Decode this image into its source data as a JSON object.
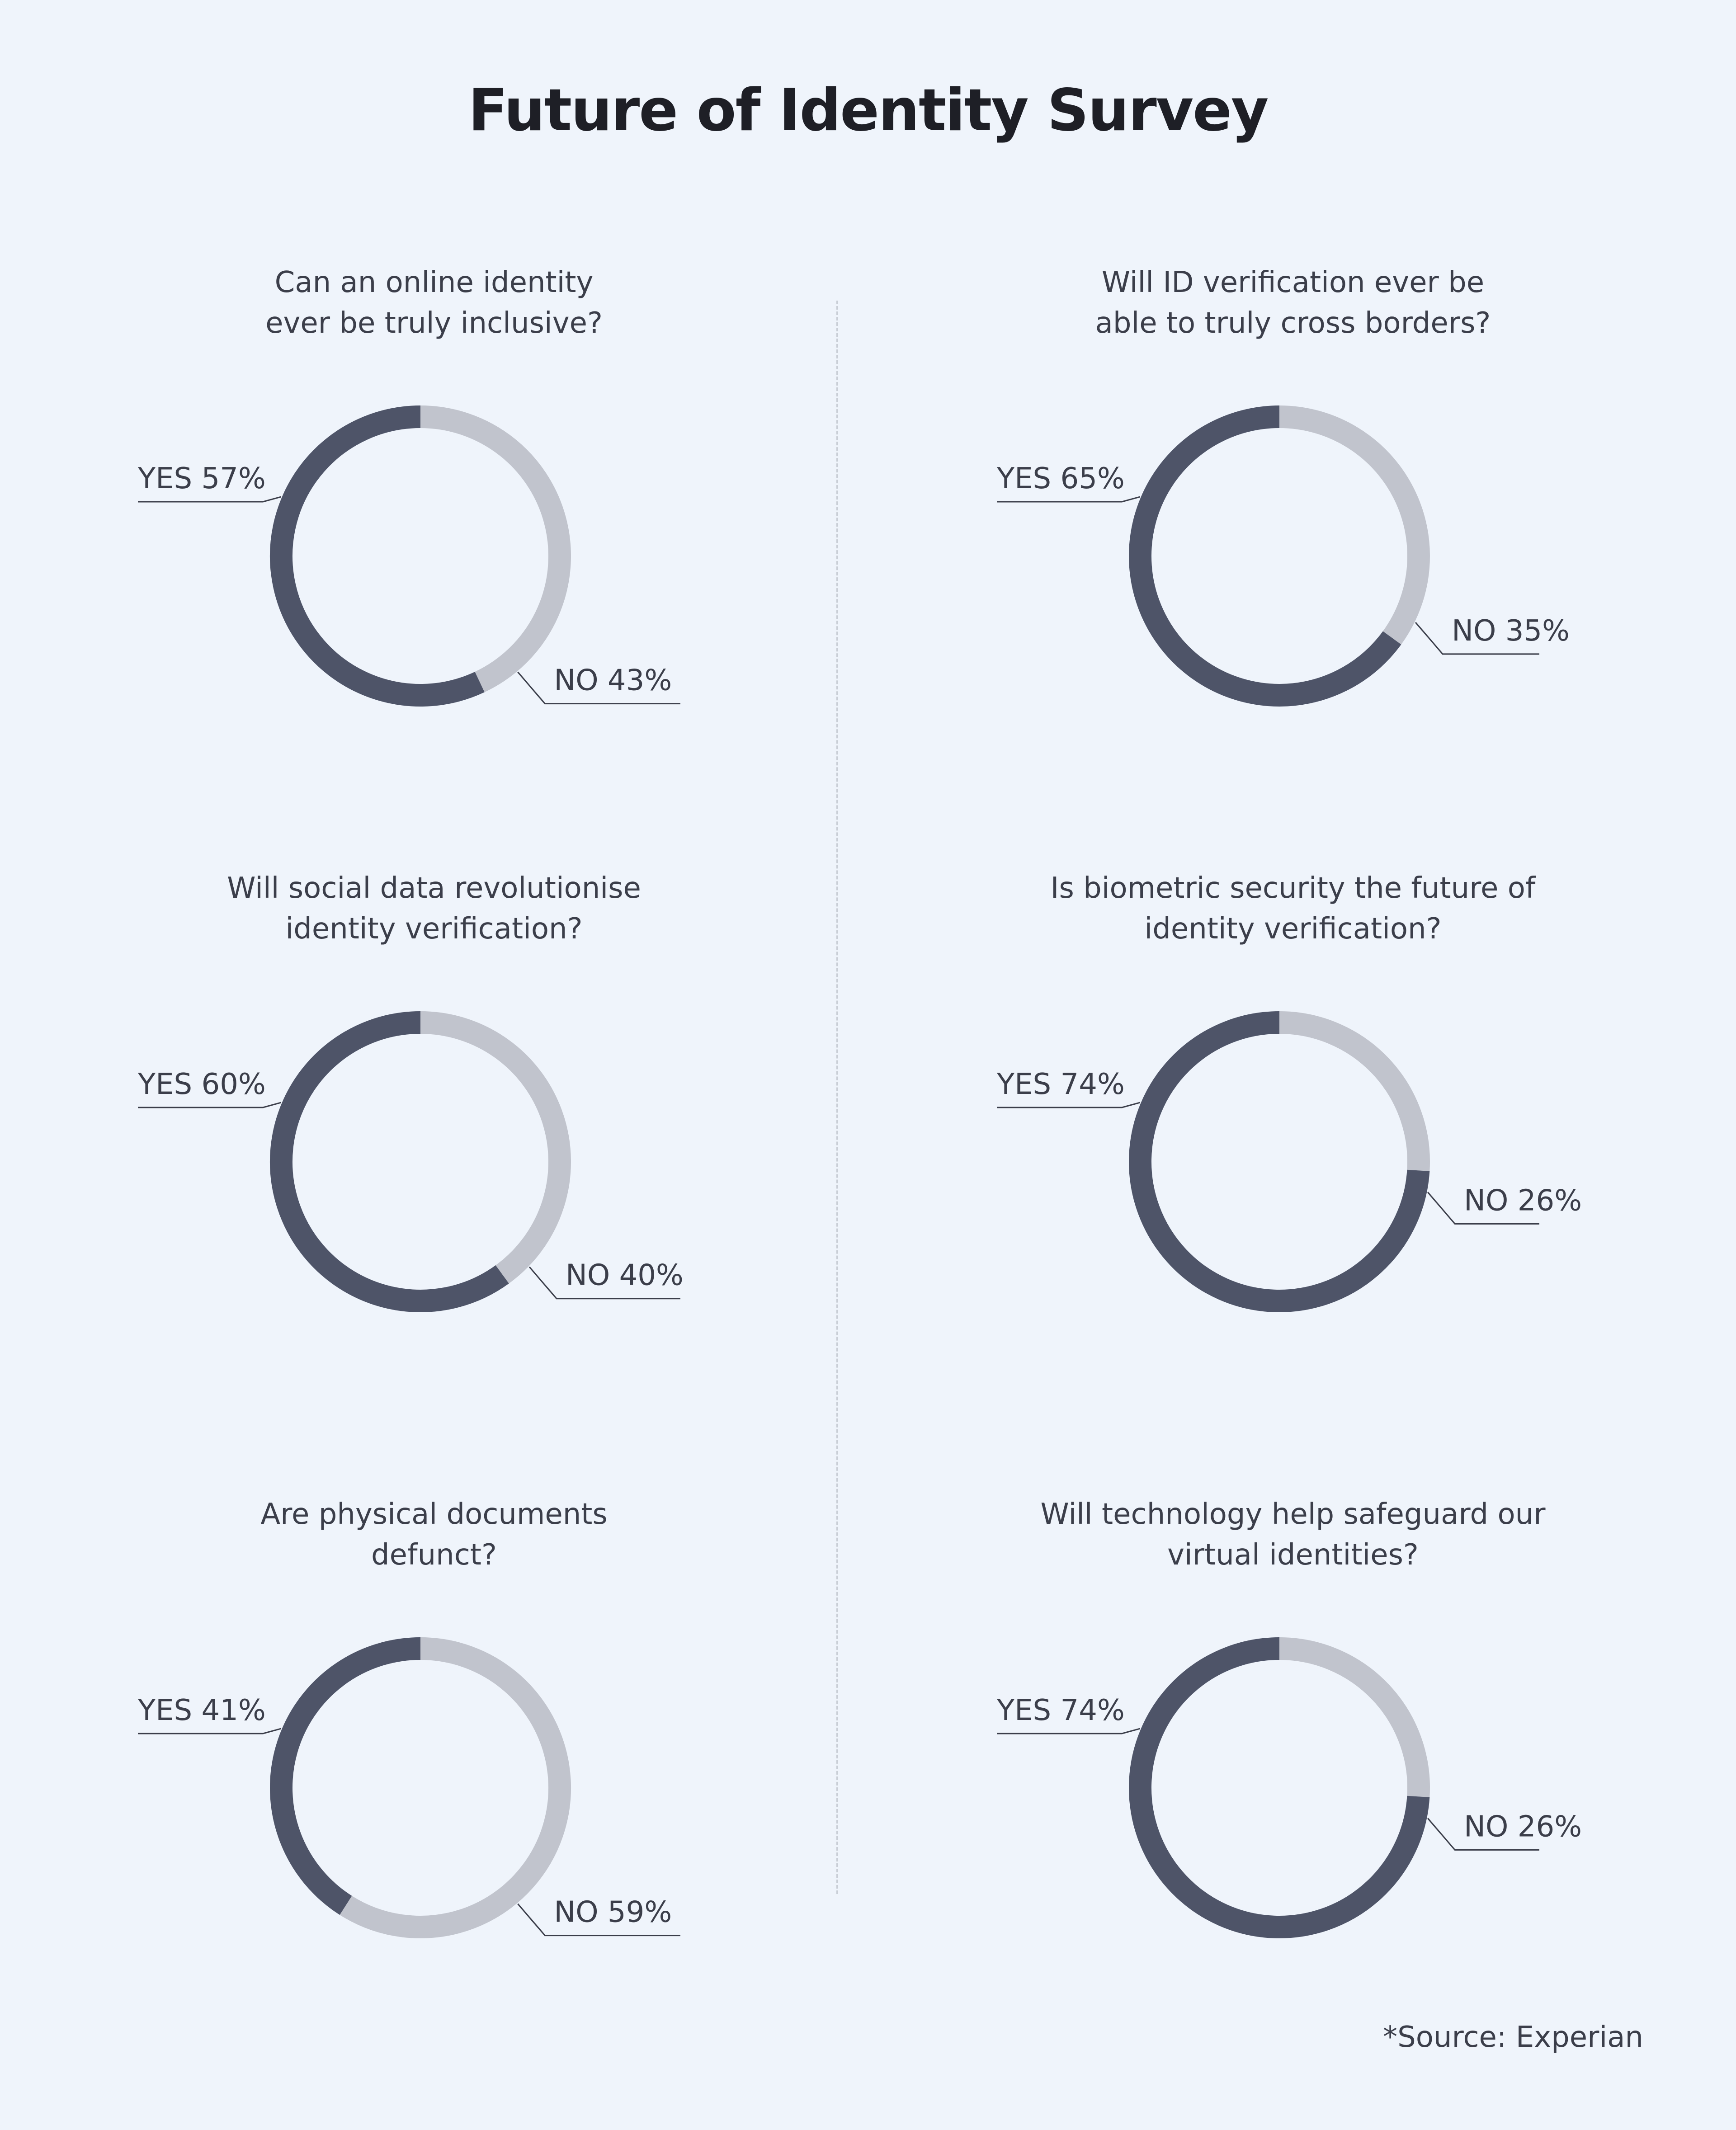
{
  "title": "Future of Identity Survey",
  "source": "*Source: Experian",
  "colors": {
    "yes": "#4e5468",
    "no": "#c1c4cd",
    "background": "#eff4fb",
    "divider": "#c9ced6",
    "text": "#3b3e4a"
  },
  "chart_data": [
    {
      "type": "pie",
      "title": "Can an online identity\never be truly inclusive?",
      "labels": [
        "YES",
        "NO"
      ],
      "values": [
        57,
        43
      ],
      "value_labels": [
        "YES 57%",
        "NO 43%"
      ]
    },
    {
      "type": "pie",
      "title": "Will ID verification ever be\nable to truly cross borders?",
      "labels": [
        "YES",
        "NO"
      ],
      "values": [
        65,
        35
      ],
      "value_labels": [
        "YES 65%",
        "NO 35%"
      ]
    },
    {
      "type": "pie",
      "title": "Will social data revolutionise\nidentity verification?",
      "labels": [
        "YES",
        "NO"
      ],
      "values": [
        60,
        40
      ],
      "value_labels": [
        "YES 60%",
        "NO 40%"
      ]
    },
    {
      "type": "pie",
      "title": "Is biometric security the future of\nidentity verification?",
      "labels": [
        "YES",
        "NO"
      ],
      "values": [
        74,
        26
      ],
      "value_labels": [
        "YES 74%",
        "NO 26%"
      ]
    },
    {
      "type": "pie",
      "title": "Are physical documents\ndefunct?",
      "labels": [
        "YES",
        "NO"
      ],
      "values": [
        41,
        59
      ],
      "value_labels": [
        "YES 41%",
        "NO 59%"
      ]
    },
    {
      "type": "pie",
      "title": "Will technology help safeguard our\nvirtual identities?",
      "labels": [
        "YES",
        "NO"
      ],
      "values": [
        74,
        26
      ],
      "value_labels": [
        "YES 74%",
        "NO 26%"
      ]
    }
  ]
}
